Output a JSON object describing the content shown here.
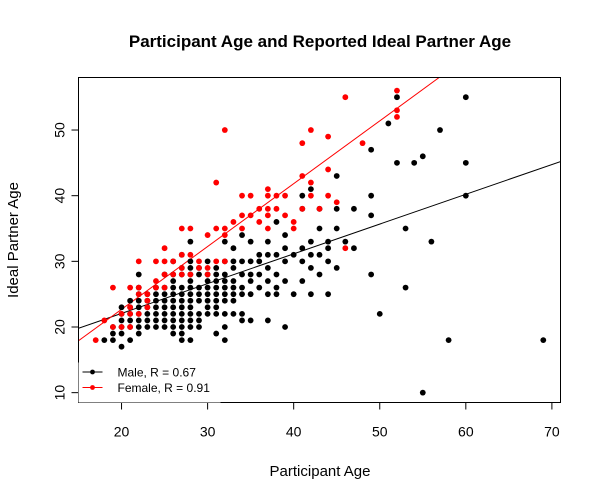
{
  "chart_data": {
    "type": "scatter",
    "title": "Participant Age and Reported Ideal Partner Age",
    "xlabel": "Participant Age",
    "ylabel": "Ideal Partner Age",
    "xlim": [
      15,
      71
    ],
    "ylim": [
      8.5,
      58
    ],
    "x_ticks": [
      20,
      30,
      40,
      50,
      60,
      70
    ],
    "y_ticks": [
      10,
      20,
      30,
      40,
      50
    ],
    "grid": false,
    "legend_position": "bottom-left",
    "series": [
      {
        "name": "Male, R = 0.67",
        "color": "#000000",
        "points": [
          [
            18,
            18
          ],
          [
            19,
            18
          ],
          [
            19,
            19
          ],
          [
            19,
            20
          ],
          [
            20,
            17
          ],
          [
            20,
            19
          ],
          [
            20,
            20
          ],
          [
            20,
            21
          ],
          [
            20,
            22
          ],
          [
            20,
            23
          ],
          [
            21,
            18
          ],
          [
            21,
            20
          ],
          [
            21,
            21
          ],
          [
            21,
            22
          ],
          [
            21,
            23
          ],
          [
            21,
            24
          ],
          [
            22,
            19
          ],
          [
            22,
            20
          ],
          [
            22,
            21
          ],
          [
            22,
            22
          ],
          [
            22,
            23
          ],
          [
            22,
            24
          ],
          [
            22,
            25
          ],
          [
            22,
            26
          ],
          [
            22,
            28
          ],
          [
            23,
            20
          ],
          [
            23,
            21
          ],
          [
            23,
            22
          ],
          [
            23,
            23
          ],
          [
            23,
            24
          ],
          [
            23,
            25
          ],
          [
            24,
            20
          ],
          [
            24,
            21
          ],
          [
            24,
            22
          ],
          [
            24,
            23
          ],
          [
            24,
            24
          ],
          [
            24,
            25
          ],
          [
            24,
            26
          ],
          [
            25,
            20
          ],
          [
            25,
            21
          ],
          [
            25,
            22
          ],
          [
            25,
            23
          ],
          [
            25,
            24
          ],
          [
            25,
            25
          ],
          [
            25,
            26
          ],
          [
            25,
            28
          ],
          [
            26,
            19
          ],
          [
            26,
            20
          ],
          [
            26,
            21
          ],
          [
            26,
            22
          ],
          [
            26,
            23
          ],
          [
            26,
            24
          ],
          [
            26,
            25
          ],
          [
            26,
            26
          ],
          [
            26,
            27
          ],
          [
            26,
            28
          ],
          [
            26,
            30
          ],
          [
            27,
            18
          ],
          [
            27,
            19
          ],
          [
            27,
            20
          ],
          [
            27,
            21
          ],
          [
            27,
            22
          ],
          [
            27,
            23
          ],
          [
            27,
            24
          ],
          [
            27,
            25
          ],
          [
            27,
            26
          ],
          [
            27,
            28
          ],
          [
            27,
            29
          ],
          [
            27,
            31
          ],
          [
            28,
            18
          ],
          [
            28,
            20
          ],
          [
            28,
            21
          ],
          [
            28,
            22
          ],
          [
            28,
            23
          ],
          [
            28,
            24
          ],
          [
            28,
            25
          ],
          [
            28,
            26
          ],
          [
            28,
            27
          ],
          [
            28,
            28
          ],
          [
            28,
            29
          ],
          [
            28,
            30
          ],
          [
            28,
            33
          ],
          [
            29,
            20
          ],
          [
            29,
            21
          ],
          [
            29,
            22
          ],
          [
            29,
            24
          ],
          [
            29,
            25
          ],
          [
            29,
            26
          ],
          [
            29,
            28
          ],
          [
            29,
            29
          ],
          [
            30,
            22
          ],
          [
            30,
            23
          ],
          [
            30,
            24
          ],
          [
            30,
            25
          ],
          [
            30,
            26
          ],
          [
            30,
            27
          ],
          [
            30,
            28
          ],
          [
            30,
            30
          ],
          [
            31,
            19
          ],
          [
            31,
            22
          ],
          [
            31,
            23
          ],
          [
            31,
            24
          ],
          [
            31,
            25
          ],
          [
            31,
            26
          ],
          [
            31,
            27
          ],
          [
            31,
            28
          ],
          [
            31,
            29
          ],
          [
            32,
            18
          ],
          [
            32,
            20
          ],
          [
            32,
            22
          ],
          [
            32,
            24
          ],
          [
            32,
            25
          ],
          [
            32,
            26
          ],
          [
            32,
            27
          ],
          [
            32,
            28
          ],
          [
            32,
            30
          ],
          [
            32,
            33
          ],
          [
            33,
            22
          ],
          [
            33,
            24
          ],
          [
            33,
            25
          ],
          [
            33,
            26
          ],
          [
            33,
            27
          ],
          [
            33,
            29
          ],
          [
            33,
            30
          ],
          [
            33,
            32
          ],
          [
            34,
            21
          ],
          [
            34,
            22
          ],
          [
            34,
            25
          ],
          [
            34,
            26
          ],
          [
            34,
            28
          ],
          [
            34,
            30
          ],
          [
            34,
            34
          ],
          [
            35,
            21
          ],
          [
            35,
            25
          ],
          [
            35,
            27
          ],
          [
            35,
            28
          ],
          [
            35,
            30
          ],
          [
            35,
            33
          ],
          [
            36,
            26
          ],
          [
            36,
            28
          ],
          [
            36,
            30
          ],
          [
            36,
            31
          ],
          [
            37,
            21
          ],
          [
            37,
            25
          ],
          [
            37,
            27
          ],
          [
            37,
            29
          ],
          [
            37,
            31
          ],
          [
            37,
            33
          ],
          [
            38,
            25
          ],
          [
            38,
            26
          ],
          [
            38,
            28
          ],
          [
            38,
            31
          ],
          [
            38,
            36
          ],
          [
            39,
            20
          ],
          [
            39,
            27
          ],
          [
            39,
            30
          ],
          [
            39,
            32
          ],
          [
            39,
            34
          ],
          [
            40,
            25
          ],
          [
            40,
            31
          ],
          [
            41,
            27
          ],
          [
            41,
            30
          ],
          [
            41,
            32
          ],
          [
            41,
            38
          ],
          [
            41,
            40
          ],
          [
            42,
            25
          ],
          [
            42,
            29
          ],
          [
            42,
            31
          ],
          [
            42,
            33
          ],
          [
            42,
            41
          ],
          [
            43,
            28
          ],
          [
            43,
            31
          ],
          [
            43,
            35
          ],
          [
            43,
            38
          ],
          [
            44,
            25
          ],
          [
            44,
            30
          ],
          [
            44,
            32
          ],
          [
            44,
            33
          ],
          [
            45,
            29
          ],
          [
            45,
            35
          ],
          [
            45,
            38
          ],
          [
            45,
            43
          ],
          [
            46,
            33
          ],
          [
            47,
            32
          ],
          [
            47,
            38
          ],
          [
            49,
            28
          ],
          [
            49,
            37
          ],
          [
            49,
            40
          ],
          [
            49,
            47
          ],
          [
            50,
            22
          ],
          [
            51,
            51
          ],
          [
            52,
            45
          ],
          [
            52,
            55
          ],
          [
            53,
            26
          ],
          [
            53,
            35
          ],
          [
            54,
            45
          ],
          [
            55,
            10
          ],
          [
            55,
            46
          ],
          [
            56,
            33
          ],
          [
            57,
            50
          ],
          [
            58,
            18
          ],
          [
            60,
            40
          ],
          [
            60,
            45
          ],
          [
            60,
            55
          ],
          [
            69,
            18
          ]
        ],
        "fit": {
          "x": [
            15,
            71
          ],
          "y": [
            19.8,
            45.2
          ]
        }
      },
      {
        "name": "Female, R = 0.91",
        "color": "#ff0000",
        "points": [
          [
            17,
            18
          ],
          [
            18,
            21
          ],
          [
            19,
            20
          ],
          [
            19,
            26
          ],
          [
            20,
            20
          ],
          [
            20,
            22
          ],
          [
            21,
            20
          ],
          [
            21,
            22
          ],
          [
            21,
            23
          ],
          [
            21,
            26
          ],
          [
            22,
            22
          ],
          [
            22,
            25
          ],
          [
            22,
            26
          ],
          [
            22,
            30
          ],
          [
            23,
            23
          ],
          [
            23,
            24
          ],
          [
            23,
            25
          ],
          [
            24,
            26
          ],
          [
            24,
            27
          ],
          [
            24,
            30
          ],
          [
            25,
            26
          ],
          [
            25,
            28
          ],
          [
            25,
            30
          ],
          [
            25,
            32
          ],
          [
            26,
            28
          ],
          [
            26,
            30
          ],
          [
            27,
            28
          ],
          [
            27,
            29
          ],
          [
            27,
            31
          ],
          [
            27,
            35
          ],
          [
            28,
            28
          ],
          [
            28,
            31
          ],
          [
            28,
            35
          ],
          [
            29,
            29
          ],
          [
            29,
            30
          ],
          [
            30,
            28
          ],
          [
            30,
            29
          ],
          [
            30,
            34
          ],
          [
            31,
            30
          ],
          [
            31,
            35
          ],
          [
            31,
            42
          ],
          [
            32,
            30
          ],
          [
            32,
            34
          ],
          [
            32,
            35
          ],
          [
            32,
            50
          ],
          [
            33,
            36
          ],
          [
            34,
            35
          ],
          [
            34,
            37
          ],
          [
            34,
            40
          ],
          [
            35,
            37
          ],
          [
            35,
            40
          ],
          [
            36,
            36
          ],
          [
            36,
            38
          ],
          [
            37,
            35
          ],
          [
            37,
            37
          ],
          [
            37,
            38
          ],
          [
            37,
            40
          ],
          [
            37,
            41
          ],
          [
            38,
            38
          ],
          [
            38,
            40
          ],
          [
            39,
            37
          ],
          [
            39,
            40
          ],
          [
            40,
            35
          ],
          [
            40,
            36
          ],
          [
            41,
            38
          ],
          [
            41,
            43
          ],
          [
            41,
            48
          ],
          [
            42,
            40
          ],
          [
            42,
            42
          ],
          [
            42,
            50
          ],
          [
            43,
            38
          ],
          [
            44,
            40
          ],
          [
            44,
            44
          ],
          [
            44,
            49
          ],
          [
            45,
            39
          ],
          [
            46,
            32
          ],
          [
            46,
            55
          ],
          [
            48,
            48
          ],
          [
            52,
            52
          ],
          [
            52,
            53
          ],
          [
            52,
            56
          ]
        ],
        "fit": {
          "x": [
            15,
            56.9
          ],
          "y": [
            17.9,
            58
          ]
        }
      }
    ]
  }
}
